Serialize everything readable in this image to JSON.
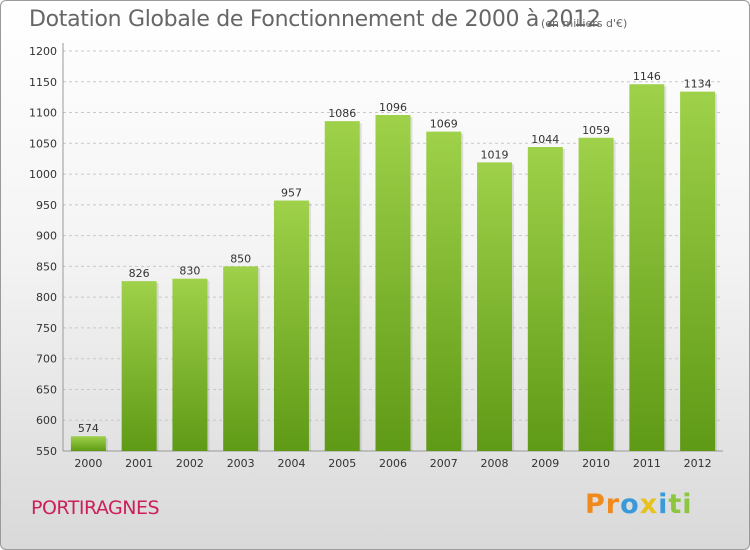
{
  "title": "Dotation Globale de Fonctionnement de 2000 à 2012",
  "subtitle": "(en milliers d'€)",
  "commune": "PORTIRAGNES",
  "logo": {
    "letters": [
      "P",
      "r",
      "o",
      "x",
      "i",
      "t",
      "i"
    ],
    "colors": [
      "#f08a1c",
      "#f08a1c",
      "#3a9ad9",
      "#e8c21a",
      "#3a9ad9",
      "#8cc63f",
      "#8cc63f"
    ]
  },
  "colors": {
    "bar_top": "#9fd14a",
    "bar_bottom": "#5f9a16",
    "grid": "#c8c8c8",
    "commune": "#cc1f5a"
  },
  "chart_data": {
    "type": "bar",
    "title": "Dotation Globale de Fonctionnement de 2000 à 2012",
    "subtitle": "(en milliers d'€)",
    "categories": [
      "2000",
      "2001",
      "2002",
      "2003",
      "2004",
      "2005",
      "2006",
      "2007",
      "2008",
      "2009",
      "2010",
      "2011",
      "2012"
    ],
    "values": [
      574,
      826,
      830,
      850,
      957,
      1086,
      1096,
      1069,
      1019,
      1044,
      1059,
      1146,
      1134
    ],
    "ylim": [
      550,
      1200
    ],
    "yticks": [
      550,
      600,
      650,
      700,
      750,
      800,
      850,
      900,
      950,
      1000,
      1050,
      1100,
      1150,
      1200
    ],
    "grid": true,
    "xlabel": "",
    "ylabel": ""
  }
}
